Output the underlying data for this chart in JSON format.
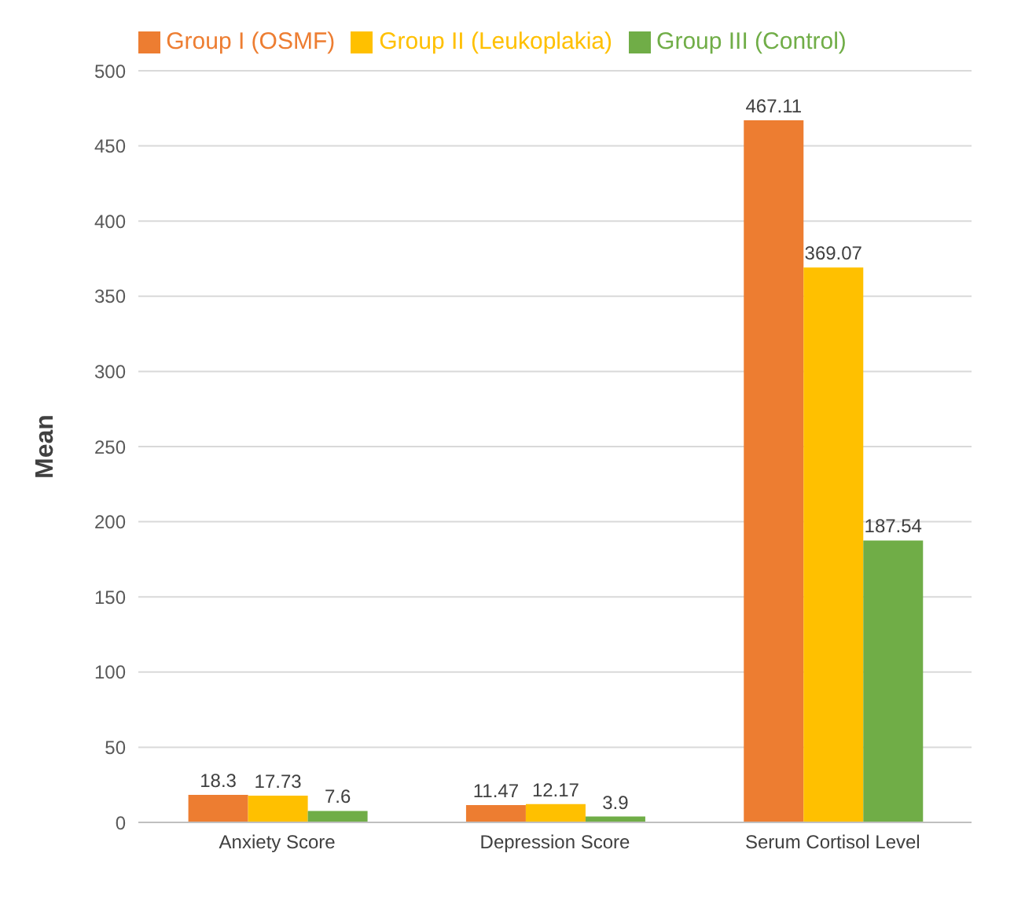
{
  "chart_data": {
    "type": "bar",
    "ylabel": "Mean",
    "categories": [
      "Anxiety Score",
      "Depression Score",
      "Serum Cortisol Level"
    ],
    "series": [
      {
        "name": "Group I (OSMF)",
        "color": "#ed7d31",
        "values": [
          18.3,
          11.47,
          467.11
        ]
      },
      {
        "name": "Group II (Leukoplakia)",
        "color": "#ffc000",
        "values": [
          17.73,
          12.17,
          369.07
        ]
      },
      {
        "name": "Group III (Control)",
        "color": "#70ad47",
        "values": [
          7.6,
          3.9,
          187.54
        ]
      }
    ],
    "ylim": [
      0,
      500
    ],
    "yticks": [
      0,
      50,
      100,
      150,
      200,
      250,
      300,
      350,
      400,
      450,
      500
    ],
    "grid": "y",
    "legend": "top",
    "data_labels": true
  }
}
